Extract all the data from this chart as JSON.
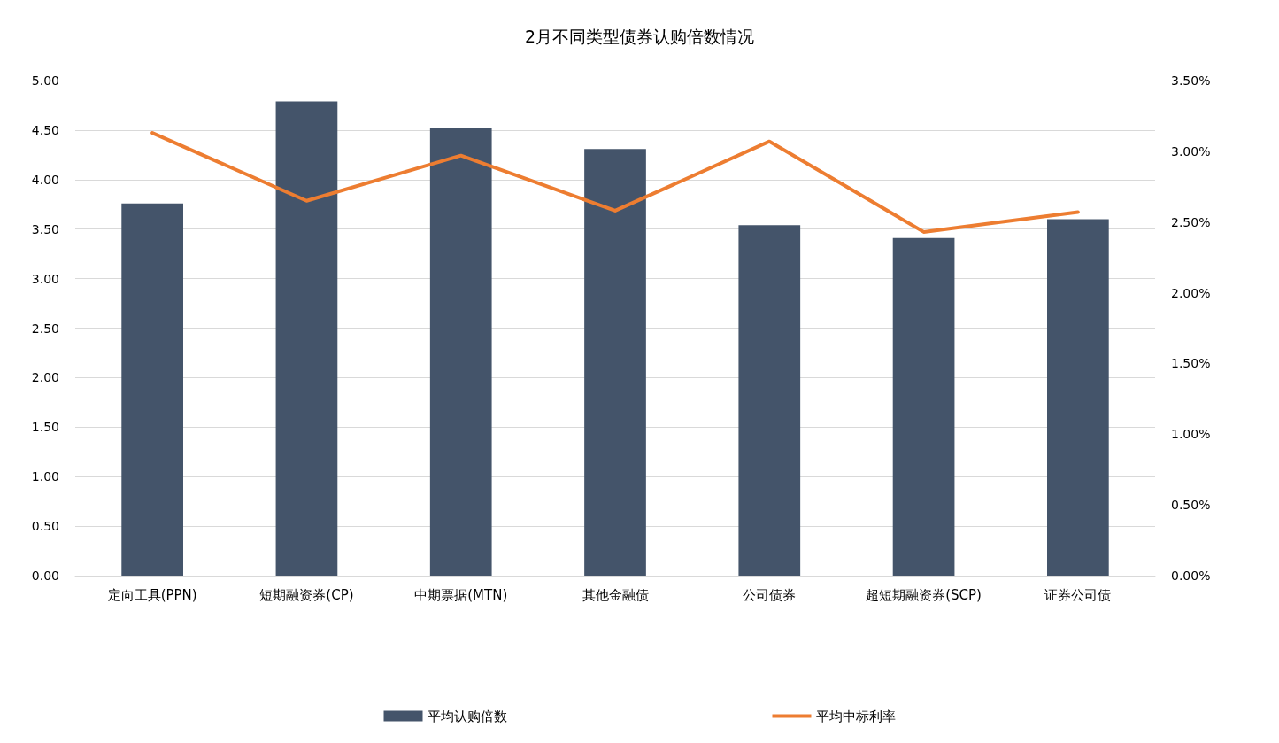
{
  "chart_data": {
    "type": "bar",
    "title": "2月不同类型债券认购倍数情况",
    "categories": [
      "定向工具(PPN)",
      "短期融资券(CP)",
      "中期票据(MTN)",
      "其他金融债",
      "公司债券",
      "超短期融资券(SCP)",
      "证券公司债"
    ],
    "series": [
      {
        "name": "平均认购倍数",
        "color": "#44546a",
        "values": [
          3.76,
          4.79,
          4.52,
          4.31,
          3.54,
          3.41,
          3.6
        ]
      },
      {
        "name": "平均中标利率",
        "type": "line",
        "axis": "y2",
        "color": "#ed7d31",
        "values": [
          3.13,
          2.65,
          2.97,
          2.58,
          3.07,
          2.43,
          2.57
        ]
      }
    ],
    "ylim": [
      0,
      5
    ],
    "yticks": [
      {
        "value": 0,
        "label": "0.00"
      },
      {
        "value": 0.5,
        "label": "0.50"
      },
      {
        "value": 1,
        "label": "1.00"
      },
      {
        "value": 1.5,
        "label": "1.50"
      },
      {
        "value": 2,
        "label": "2.00"
      },
      {
        "value": 2.5,
        "label": "2.50"
      },
      {
        "value": 3,
        "label": "3.00"
      },
      {
        "value": 3.5,
        "label": "3.50"
      },
      {
        "value": 4,
        "label": "4.00"
      },
      {
        "value": 4.5,
        "label": "4.50"
      },
      {
        "value": 5,
        "label": "5.00"
      }
    ],
    "y2lim": [
      0,
      3.5
    ],
    "y2ticks": [
      {
        "value": 0,
        "label": "0.00%"
      },
      {
        "value": 0.5,
        "label": "0.50%"
      },
      {
        "value": 1,
        "label": "1.00%"
      },
      {
        "value": 1.5,
        "label": "1.50%"
      },
      {
        "value": 2,
        "label": "2.00%"
      },
      {
        "value": 2.5,
        "label": "2.50%"
      },
      {
        "value": 3,
        "label": "3.00%"
      },
      {
        "value": 3.5,
        "label": "3.50%"
      }
    ],
    "grid": "y",
    "legend": "bottom",
    "marker": "none",
    "line_style": "solid"
  }
}
